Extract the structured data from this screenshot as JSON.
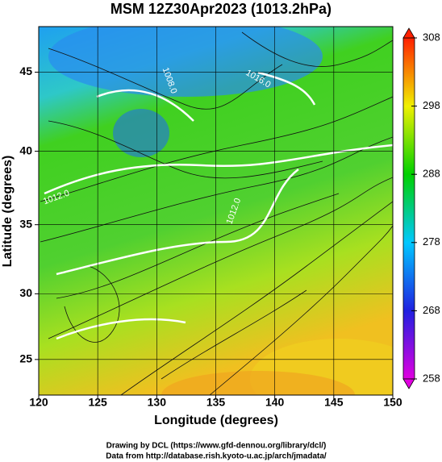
{
  "chart_data": {
    "type": "field-map",
    "title": "MSM 12Z30Apr2023 (1013.2hPa)",
    "x_label": "Longitude (degrees)",
    "y_label": "Latitude  (degrees)",
    "xlim": [
      120,
      150
    ],
    "xticks": [
      120,
      125,
      130,
      135,
      140,
      145,
      150
    ],
    "ylim": [
      22.2,
      47.7
    ],
    "yticks": [
      25,
      30,
      35,
      40,
      45
    ],
    "projection": "mercator",
    "grid": true,
    "colorbar": {
      "lim": [
        258,
        308
      ],
      "ticks": [
        258,
        268,
        278,
        288,
        298,
        308
      ],
      "colors": [
        "#e000e0",
        "#2020e0",
        "#00c8ff",
        "#00d000",
        "#f0f000",
        "#ff2000"
      ]
    },
    "annotations": [
      "1012.0",
      "1012.0",
      "1008.0",
      "1016.0"
    ],
    "credits": [
      "Drawing by DCL (https://www.gfd-dennou.org/library/dcl/)",
      "Data from http://database.rish.kyoto-u.ac.jp/arch/jmadata/"
    ]
  }
}
